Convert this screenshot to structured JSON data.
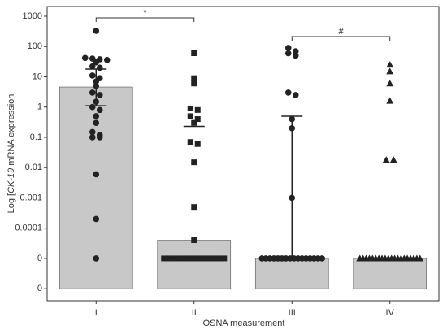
{
  "chart_data": {
    "type": "bar",
    "x_label": "OSNA measurement",
    "y_label_parts": [
      "Log [",
      "CK-19",
      " mRNA expression"
    ],
    "categories": [
      "I",
      "II",
      "III",
      "IV"
    ],
    "values": [
      4.6,
      4e-05,
      1e-05,
      1e-05
    ],
    "color": "#c8c8c8",
    "upper": [
      18,
      0.23,
      0.5,
      null
    ],
    "lower": [
      1.1,
      null,
      1e-05,
      null
    ],
    "markers": [
      "circle",
      "square",
      "circle",
      "triangle"
    ],
    "points": [
      [
        330,
        42,
        40,
        38,
        36,
        30,
        22,
        20,
        11,
        9,
        7,
        5,
        3,
        2.5,
        1.5,
        1,
        0.8,
        0.5,
        0.3,
        0.15,
        0.12,
        0.1,
        0.1,
        0.006,
        0.0002,
        1e-05
      ],
      [
        60,
        9,
        6,
        0.9,
        0.8,
        0.5,
        0.4,
        0.3,
        0.07,
        0.06,
        0.015,
        0.0005,
        4e-05,
        1e-05,
        1e-05,
        1e-05,
        1e-05,
        1e-05,
        1e-05,
        1e-05,
        1e-05,
        1e-05,
        1e-05,
        1e-05,
        1e-05,
        1e-05,
        1e-05
      ],
      [
        90,
        70,
        60,
        50,
        3,
        2.5,
        0.4,
        0.2,
        0.001,
        1e-05,
        1e-05,
        1e-05,
        1e-05,
        1e-05,
        1e-05,
        1e-05,
        1e-05,
        1e-05,
        1e-05,
        1e-05,
        1e-05,
        1e-05,
        1e-05,
        1e-05,
        1e-05
      ],
      [
        25,
        15,
        6,
        1.6,
        0.018,
        0.018,
        1e-05,
        1e-05,
        1e-05,
        1e-05,
        1e-05,
        1e-05,
        1e-05,
        1e-05,
        1e-05,
        1e-05,
        1e-05,
        1e-05,
        1e-05,
        1e-05,
        1e-05,
        1e-05,
        1e-05,
        1e-05,
        1e-05,
        1e-05
      ]
    ],
    "annotations": [
      "*",
      "#"
    ],
    "log_scale": true,
    "ylim": [
      4e-07,
      2100
    ],
    "yticks": [
      {
        "value": 1e-06,
        "label": "0"
      },
      {
        "value": 1e-05,
        "label": "0"
      },
      0.0001,
      0.001,
      0.01,
      0.1,
      1,
      10,
      100,
      1000
    ]
  }
}
